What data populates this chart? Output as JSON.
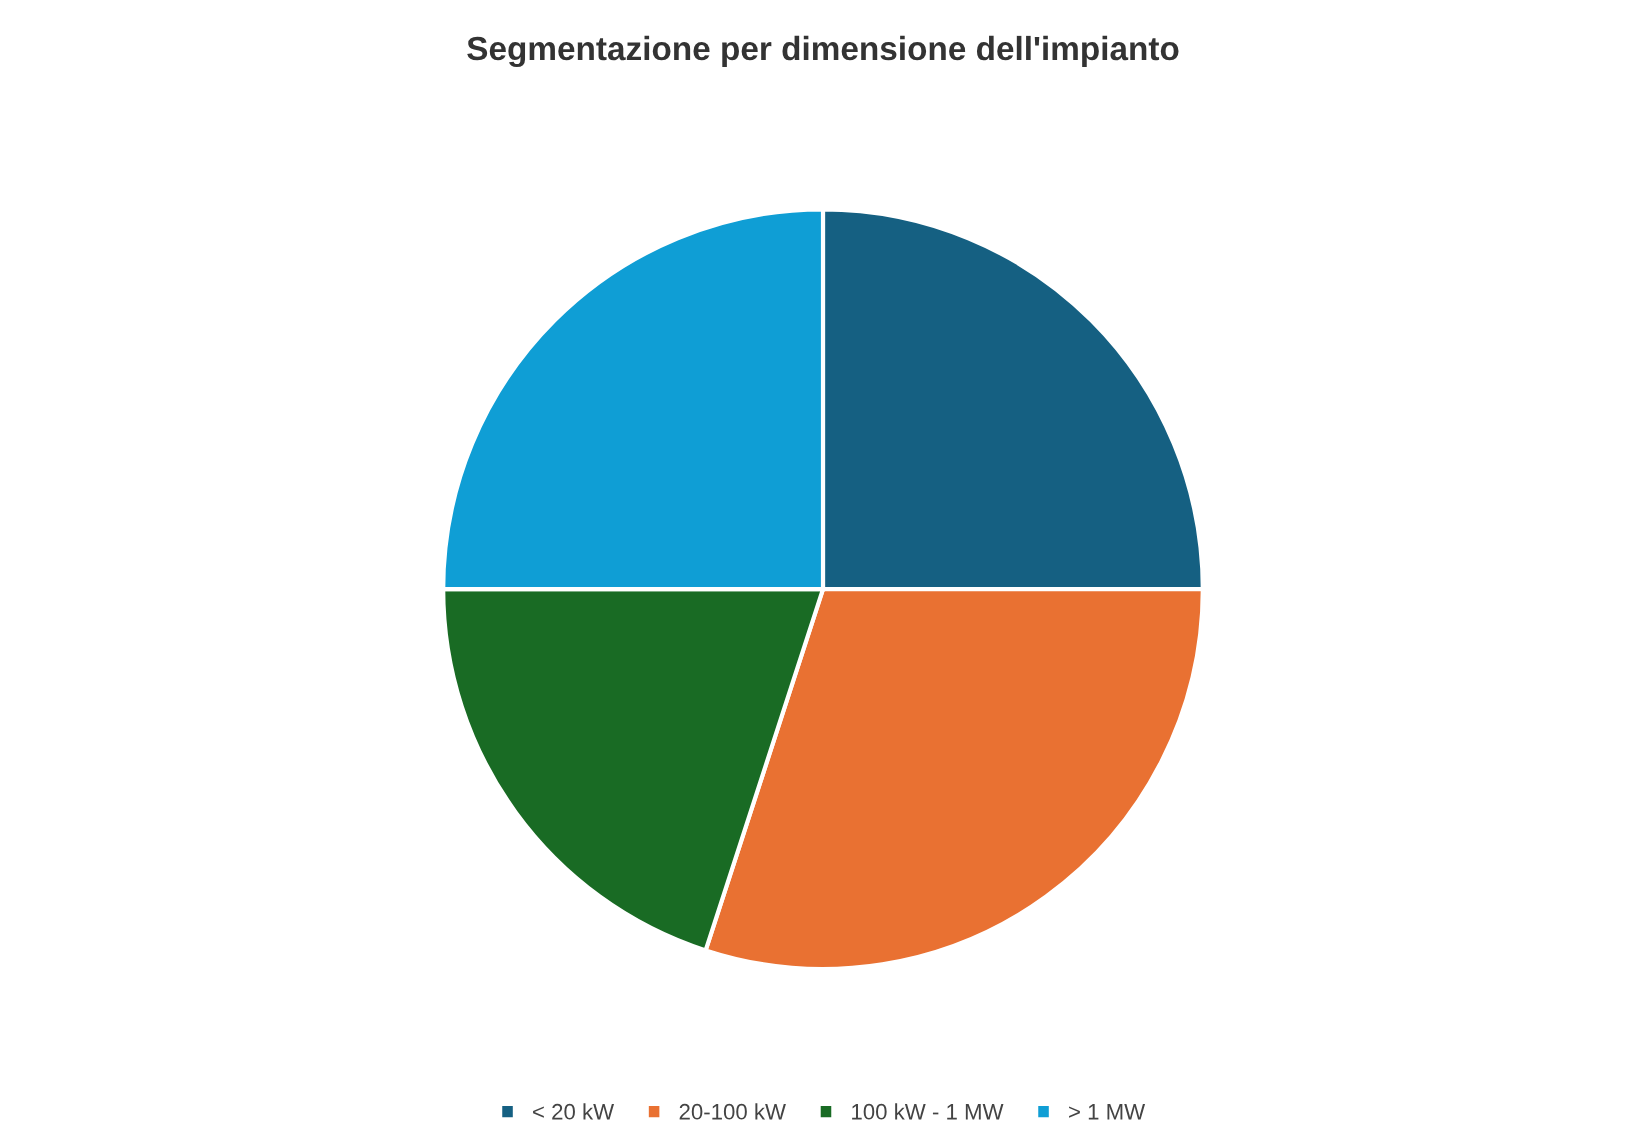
{
  "chart_data": {
    "type": "pie",
    "title": "Segmentazione per dimensione dell'impianto",
    "categories": [
      "< 20 kW",
      "20-100 kW",
      "100 kW - 1 MW",
      "> 1 MW"
    ],
    "values": [
      25,
      30,
      20,
      25
    ],
    "colors": [
      "#156082",
      "#e97132",
      "#196b24",
      "#0f9ed5"
    ],
    "legend": "bottom"
  }
}
